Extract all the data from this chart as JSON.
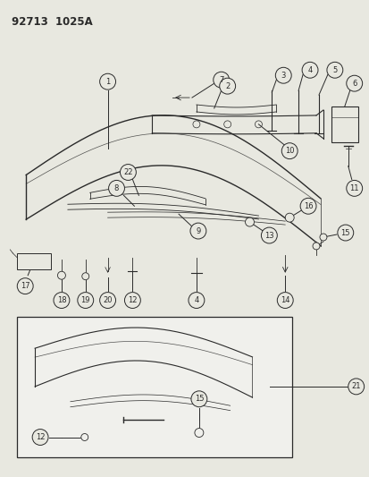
{
  "title": "92713  1025A",
  "bg_color": "#e8e8e0",
  "line_color": "#2a2a2a",
  "fig_width": 4.14,
  "fig_height": 5.33,
  "dpi": 100,
  "font_size_title": 8.5,
  "font_size_label": 6.0,
  "circle_r": 0.018
}
